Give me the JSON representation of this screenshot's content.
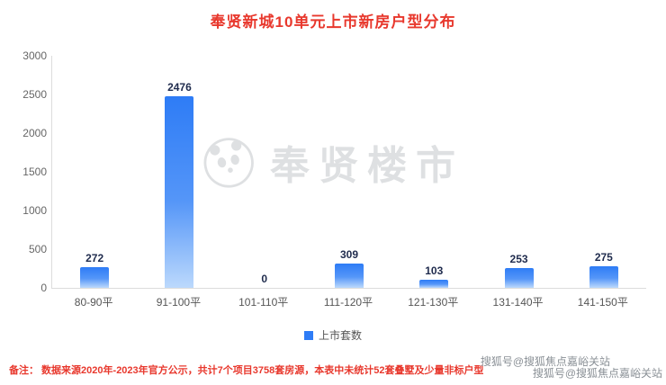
{
  "title": "奉贤新城10单元上市新房户型分布",
  "chart_data": {
    "type": "bar",
    "categories": [
      "80-90平",
      "91-100平",
      "101-110平",
      "111-120平",
      "121-130平",
      "131-140平",
      "141-150平"
    ],
    "values": [
      272,
      2476,
      0,
      309,
      103,
      253,
      275
    ],
    "title": "奉贤新城10单元上市新房户型分布",
    "xlabel": "",
    "ylabel": "",
    "ylim": [
      0,
      3000
    ],
    "yticks": [
      0,
      500,
      1000,
      1500,
      2000,
      2500,
      3000
    ],
    "grid": false,
    "legend_entries": [
      "上市套数"
    ],
    "legend_position": "bottom"
  },
  "legend": {
    "label": "上市套数"
  },
  "watermark": {
    "text": "奉贤楼市"
  },
  "note": "备注： 数据来源2020年-2023年官方公示，共计7个项目3758套房源，本表中未统计52套叠墅及少量非标户型",
  "sohu_watermark": "搜狐号@搜狐焦点嘉峪关站",
  "colors": {
    "title": "#e8382d",
    "note": "#e8382d",
    "bar_top": "#2e7cf6",
    "bar_mid": "#5596f8",
    "bar_bottom": "#bcd9fc",
    "value_label": "#1f2b4d",
    "axis_label": "#666666",
    "watermark": "#9aa0a6"
  }
}
